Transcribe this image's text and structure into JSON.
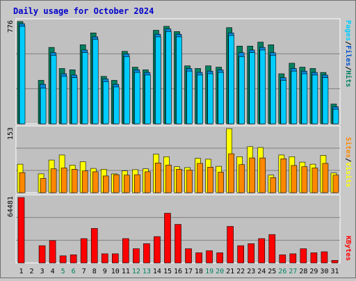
{
  "title": "Daily usage for October 2024",
  "colors": {
    "title": "#0000cc",
    "hits_front": "#00ccff",
    "hits_back": "#008060",
    "visits": "#ffff00",
    "sites": "#ff8800",
    "kbytes": "#ff0000",
    "weekend_label": "#008060",
    "grid": "#808080",
    "panel_bg": "#c0c0c0"
  },
  "panels": {
    "top": {
      "max_label": "776",
      "legend": [
        {
          "text": "Pages",
          "color": "#00ccff"
        },
        {
          "text": "/",
          "color": "#000000"
        },
        {
          "text": "Files",
          "color": "#0055cc"
        },
        {
          "text": "/",
          "color": "#000000"
        },
        {
          "text": "Hits",
          "color": "#008060"
        }
      ]
    },
    "middle": {
      "max_label": "153",
      "legend": [
        {
          "text": "Sites",
          "color": "#ff8800"
        },
        {
          "text": "/",
          "color": "#000000"
        },
        {
          "text": "Visits",
          "color": "#ffff00"
        }
      ]
    },
    "bottom": {
      "max_label": "64481",
      "legend": [
        {
          "text": "KBytes",
          "color": "#ff0000"
        }
      ]
    }
  },
  "chart_data": {
    "type": "bar",
    "title": "Daily usage for October 2024",
    "categories": [
      "1",
      "2",
      "3",
      "4",
      "5",
      "6",
      "7",
      "8",
      "9",
      "10",
      "11",
      "12",
      "13",
      "14",
      "15",
      "16",
      "17",
      "18",
      "19",
      "20",
      "21",
      "22",
      "23",
      "24",
      "25",
      "26",
      "27",
      "28",
      "29",
      "30",
      "31"
    ],
    "weekend_days": [
      "5",
      "6",
      "12",
      "13",
      "19",
      "20",
      "26",
      "27"
    ],
    "hits": [
      776,
      0,
      330,
      580,
      420,
      410,
      600,
      690,
      360,
      330,
      550,
      430,
      410,
      710,
      740,
      700,
      440,
      420,
      440,
      430,
      730,
      590,
      590,
      620,
      600,
      380,
      460,
      430,
      420,
      390,
      150
    ],
    "files": [
      760,
      0,
      300,
      540,
      380,
      370,
      560,
      660,
      340,
      300,
      530,
      410,
      390,
      680,
      720,
      680,
      420,
      390,
      400,
      410,
      690,
      540,
      560,
      580,
      540,
      350,
      420,
      400,
      390,
      370,
      130
    ],
    "pages": [
      740,
      0,
      270,
      520,
      360,
      350,
      540,
      640,
      320,
      280,
      510,
      390,
      370,
      660,
      700,
      660,
      400,
      370,
      380,
      390,
      670,
      510,
      540,
      560,
      520,
      330,
      400,
      380,
      370,
      350,
      110
    ],
    "visits": [
      68,
      0,
      45,
      78,
      90,
      66,
      74,
      58,
      56,
      45,
      52,
      55,
      57,
      92,
      86,
      62,
      60,
      82,
      80,
      63,
      153,
      86,
      110,
      108,
      42,
      90,
      86,
      73,
      68,
      89,
      47
    ],
    "sites": [
      48,
      0,
      34,
      57,
      59,
      56,
      52,
      50,
      40,
      43,
      42,
      43,
      50,
      71,
      66,
      56,
      54,
      70,
      61,
      49,
      93,
      67,
      83,
      83,
      36,
      81,
      65,
      62,
      59,
      70,
      42
    ],
    "kbytes": [
      64481,
      0,
      17000,
      22000,
      7000,
      8000,
      24000,
      34000,
      9000,
      9000,
      24000,
      14000,
      19000,
      26000,
      49000,
      38000,
      14000,
      10000,
      12000,
      10000,
      36000,
      17000,
      19000,
      24000,
      28000,
      8000,
      9000,
      14000,
      10000,
      11000,
      2500
    ],
    "ylim_top": [
      0,
      776
    ],
    "ylim_middle": [
      0,
      153
    ],
    "ylim_bottom": [
      0,
      64481
    ]
  }
}
